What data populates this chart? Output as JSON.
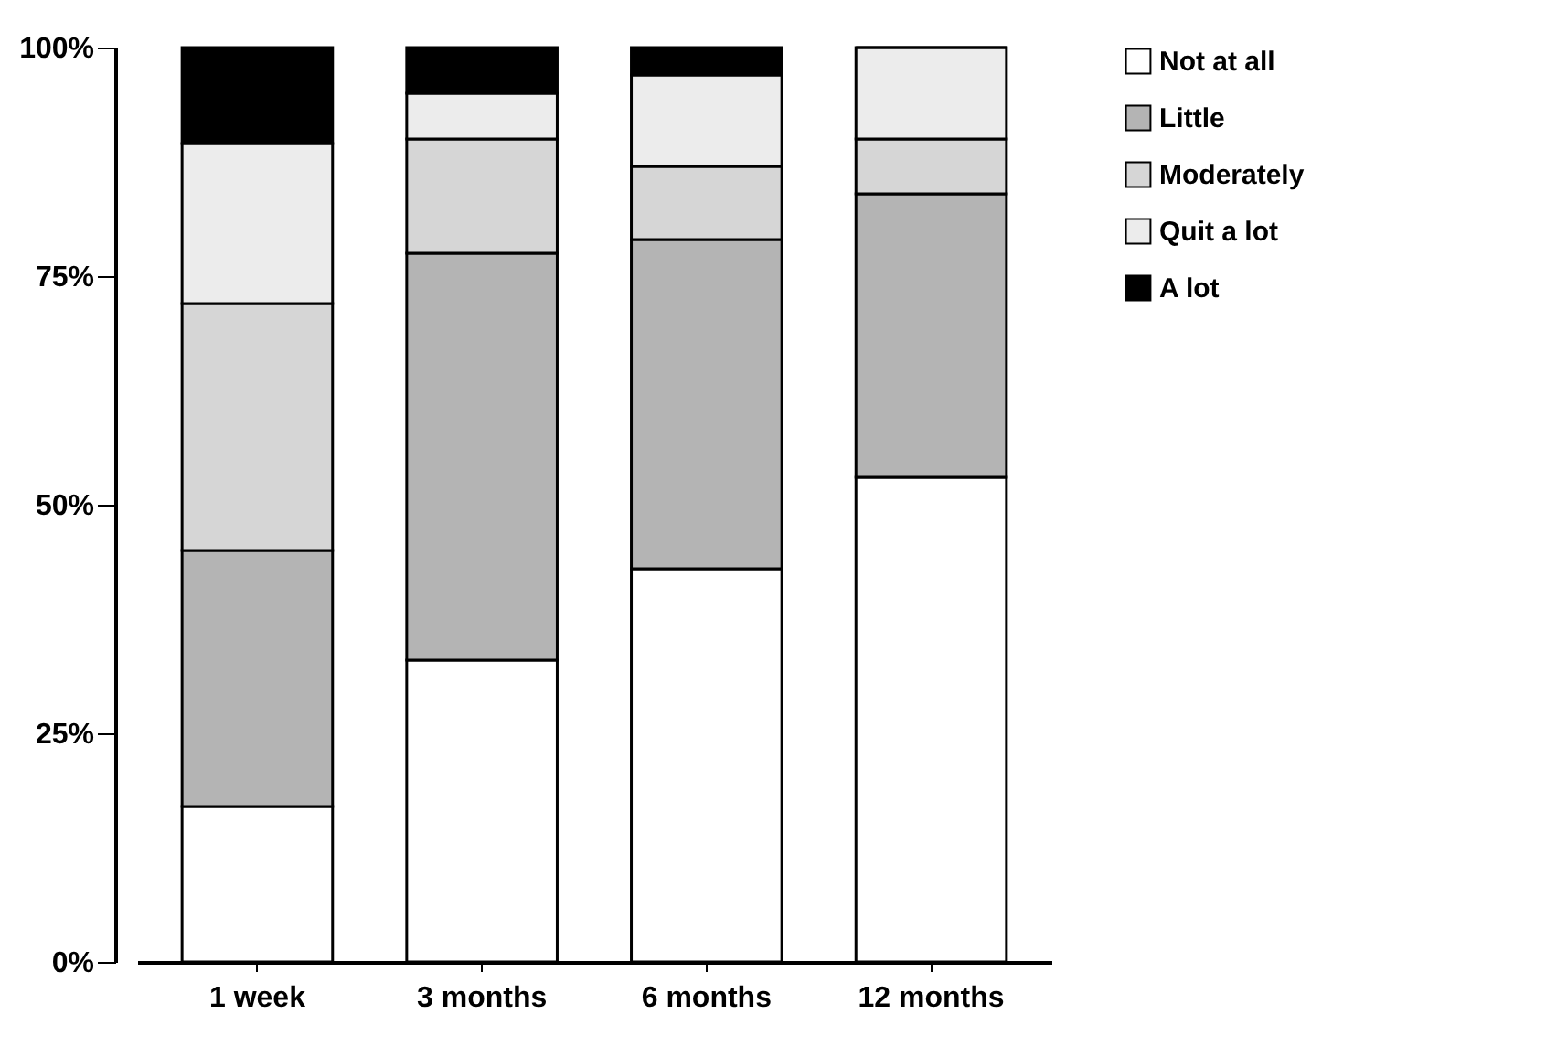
{
  "chart_data": {
    "type": "bar",
    "stacked": true,
    "categories": [
      "1 week",
      "3 months",
      "6 months",
      "12 months"
    ],
    "series": [
      {
        "name": "Not at all",
        "color": "#ffffff",
        "values": [
          17,
          33,
          43,
          53
        ]
      },
      {
        "name": "Little",
        "color": "#b4b4b4",
        "values": [
          28,
          44.5,
          36,
          31
        ]
      },
      {
        "name": "Moderately",
        "color": "#d6d6d6",
        "values": [
          27,
          12.5,
          8,
          6
        ]
      },
      {
        "name": "Quit a lot",
        "color": "#ececec",
        "values": [
          17.5,
          5,
          10,
          10
        ]
      },
      {
        "name": "A lot",
        "color": "#000000",
        "values": [
          10.5,
          5,
          3,
          0
        ]
      }
    ],
    "ylim": [
      0,
      100
    ],
    "yticks": [
      {
        "value": 0,
        "label": "0%"
      },
      {
        "value": 25,
        "label": "25%"
      },
      {
        "value": 50,
        "label": "50%"
      },
      {
        "value": 75,
        "label": "75%"
      },
      {
        "value": 100,
        "label": "100%"
      }
    ],
    "grid": false,
    "legend": "right"
  }
}
